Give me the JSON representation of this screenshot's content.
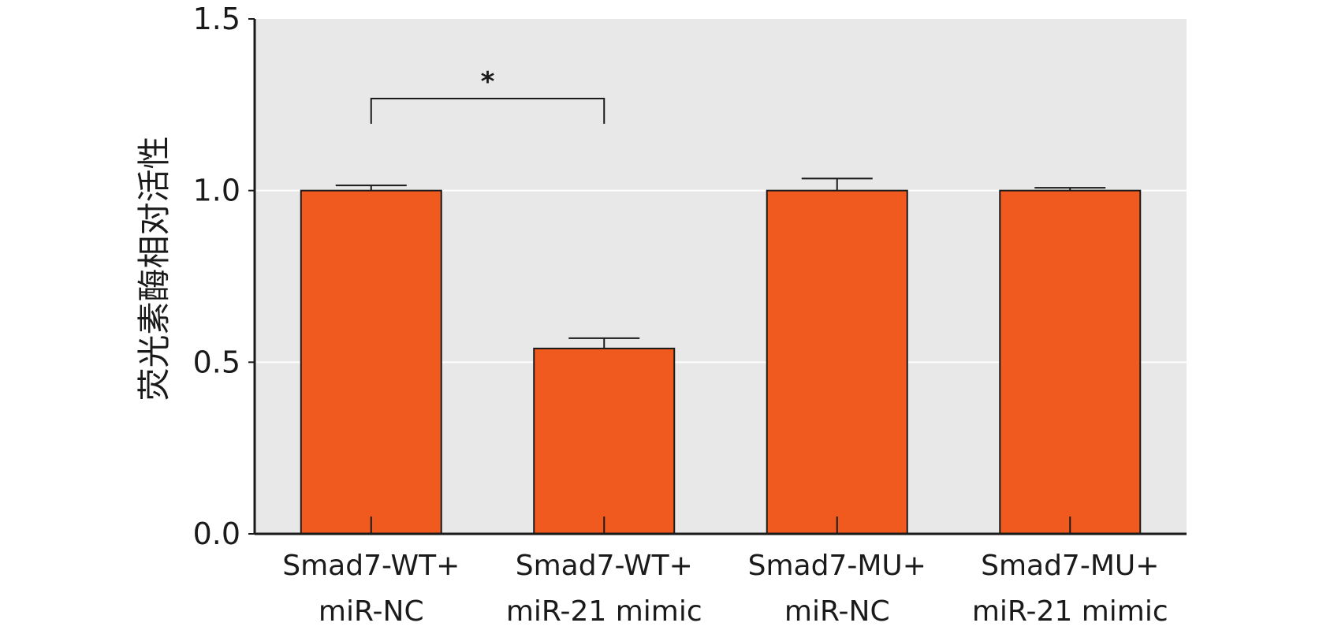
{
  "chart_data": {
    "type": "bar",
    "ylabel": "荧光素酶相对活性",
    "ylim": [
      0,
      1.5
    ],
    "yticks": [
      "0.0",
      "0.5",
      "1.0",
      "1.5"
    ],
    "grid": true,
    "categories": [
      [
        "Smad7-WT+",
        "miR-NC"
      ],
      [
        "Smad7-WT+",
        "miR-21 mimic"
      ],
      [
        "Smad7-MU+",
        "miR-NC"
      ],
      [
        "Smad7-MU+",
        "miR-21 mimic"
      ]
    ],
    "values": [
      1.0,
      0.54,
      1.0,
      1.0
    ],
    "errors": [
      0.015,
      0.03,
      0.035,
      0.008
    ],
    "significance": [
      {
        "from": 0,
        "to": 1,
        "label": "*"
      }
    ],
    "colors": {
      "bar": "#f05a1e",
      "plot_background": "#e8e8e8",
      "grid": "#ffffff",
      "axis": "#1a1a1a"
    }
  }
}
